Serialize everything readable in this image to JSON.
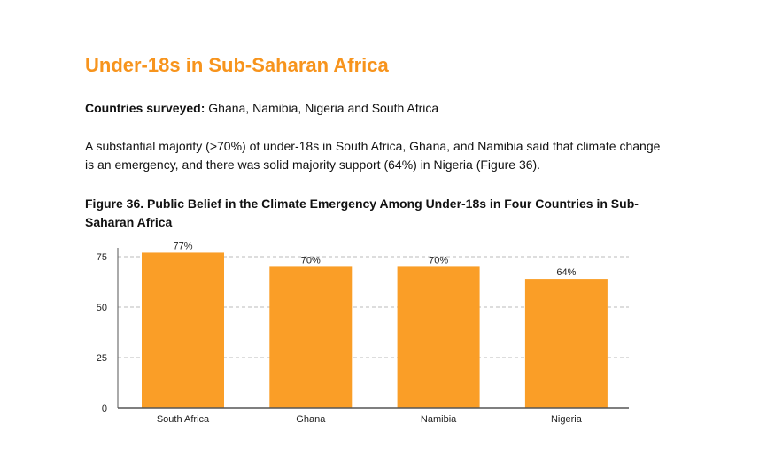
{
  "title": "Under-18s in Sub-Saharan Africa",
  "surveyed_label": "Countries surveyed:",
  "surveyed_value": " Ghana, Namibia, Nigeria and South Africa",
  "paragraph": "A substantial majority (>70%) of under-18s in South Africa, Ghana, and Namibia said that climate change is an emergency, and there was solid majority support (64%) in Nigeria (Figure 36).",
  "chart_data": {
    "type": "bar",
    "title": "Figure 36. Public Belief in the Climate Emergency Among Under-18s in Four Countries in Sub-Saharan Africa",
    "categories": [
      "South Africa",
      "Ghana",
      "Namibia",
      "Nigeria"
    ],
    "values": [
      77,
      70,
      70,
      64
    ],
    "data_labels": [
      "77%",
      "70%",
      "70%",
      "64%"
    ],
    "yticks": [
      0,
      25,
      50,
      75
    ],
    "ylim": [
      0,
      80
    ],
    "grid": true,
    "bar_color": "#fa9e27",
    "xlabel": "",
    "ylabel": ""
  }
}
